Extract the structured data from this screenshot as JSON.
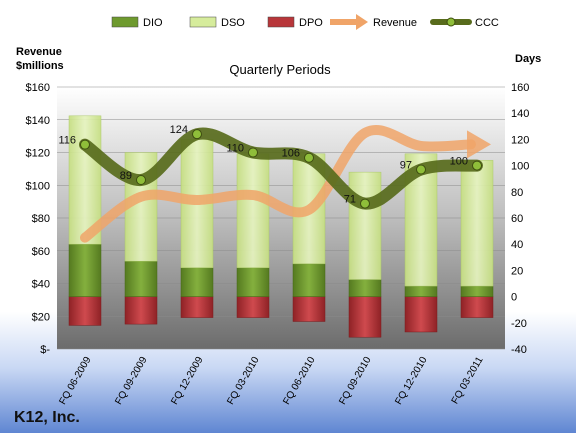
{
  "company": "K12, Inc.",
  "chart_data": {
    "type": "bar",
    "title": "Quarterly Periods",
    "left_axis_title": [
      "Revenue",
      "$millions"
    ],
    "right_axis_title": "Days",
    "categories": [
      "FQ 06-2009",
      "FQ 09-2009",
      "FQ 12-2009",
      "FQ 03-2010",
      "FQ 06-2010",
      "FQ 09-2010",
      "FQ 12-2010",
      "FQ 03-2011"
    ],
    "left_ticks": [
      "$-",
      "$20",
      "$40",
      "$60",
      "$80",
      "$100",
      "$120",
      "$140",
      "$160"
    ],
    "right_ticks": [
      "-40",
      "-20",
      "0",
      "20",
      "40",
      "60",
      "80",
      "100",
      "120",
      "140",
      "160"
    ],
    "left_range": [
      0,
      160
    ],
    "right_range": [
      -40,
      160
    ],
    "legend_position": "top",
    "series": [
      {
        "name": "DIO",
        "kind": "bar",
        "axis": "days",
        "color": "#6e9a2e",
        "values": [
          40,
          27,
          22,
          22,
          25,
          13,
          8,
          8
        ]
      },
      {
        "name": "DSO",
        "kind": "bar",
        "axis": "days",
        "color": "#d6ec9c",
        "values": [
          98,
          83,
          98,
          87,
          84,
          82,
          101,
          96
        ]
      },
      {
        "name": "DPO",
        "kind": "bar",
        "axis": "days",
        "color": "#b8363a",
        "values": [
          -22,
          -21,
          -16,
          -16,
          -19,
          -31,
          -27,
          -16
        ]
      },
      {
        "name": "Revenue",
        "kind": "line",
        "axis": "revenue",
        "color": "#f0a468",
        "values": [
          68,
          93,
          91,
          94,
          85,
          132,
          124,
          125
        ]
      },
      {
        "name": "CCC",
        "kind": "line",
        "axis": "days",
        "color": "#586b1c",
        "values": [
          116,
          89,
          124,
          110,
          106,
          71,
          97,
          100
        ],
        "labels": [
          "116",
          "89",
          "124",
          "110",
          "106",
          "71",
          "97",
          "100"
        ]
      }
    ]
  }
}
